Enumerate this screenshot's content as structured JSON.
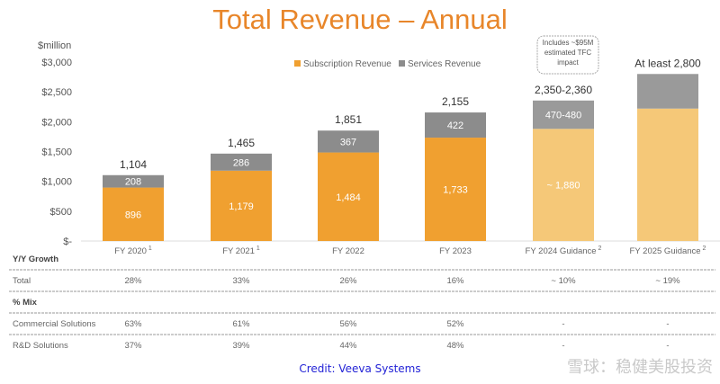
{
  "chart_data": {
    "type": "bar",
    "stacked": true,
    "title": "Total Revenue – Annual",
    "ylabel": "$million",
    "ylim": [
      0,
      3000
    ],
    "yticks": [
      "$-",
      "$500",
      "$1,000",
      "$1,500",
      "$2,000",
      "$2,500",
      "$3,000"
    ],
    "ytick_values": [
      0,
      500,
      1000,
      1500,
      2000,
      2500,
      3000
    ],
    "grid": false,
    "legend_position": "top",
    "categories": [
      "FY 2020",
      "FY 2021",
      "FY 2022",
      "FY 2023",
      "FY 2024 Guidance",
      "FY 2025 Guidance"
    ],
    "category_superscripts": [
      "1",
      "1",
      "",
      "",
      "2",
      "2"
    ],
    "series": [
      {
        "name": "Subscription Revenue",
        "color": "#F0A030",
        "guidance_color": "#F5C878",
        "values": [
          896,
          1179,
          1484,
          1733,
          1880,
          2220
        ],
        "labels": [
          "896",
          "1,179",
          "1,484",
          "1,733",
          "~ 1,880",
          ""
        ]
      },
      {
        "name": "Services Revenue",
        "color": "#8C8C8C",
        "guidance_color": "#9A9A9A",
        "values": [
          208,
          286,
          367,
          422,
          475,
          580
        ],
        "labels": [
          "208",
          "286",
          "367",
          "422",
          "470-480",
          ""
        ]
      }
    ],
    "totals": [
      "1,104",
      "1,465",
      "1,851",
      "2,155",
      "2,350-2,360",
      "At least 2,800"
    ],
    "callout": "Includes ~$95M estimated TFC impact",
    "table": {
      "sections": [
        {
          "header": "Y/Y Growth",
          "rows": [
            {
              "label": "Total",
              "values": [
                "28%",
                "33%",
                "26%",
                "16%",
                "~ 10%",
                "~ 19%"
              ]
            }
          ]
        },
        {
          "header": "% Mix",
          "rows": [
            {
              "label": "Commercial Solutions",
              "values": [
                "63%",
                "61%",
                "56%",
                "52%",
                "-",
                "-"
              ]
            },
            {
              "label": "R&D Solutions",
              "values": [
                "37%",
                "39%",
                "44%",
                "48%",
                "-",
                "-"
              ]
            }
          ]
        }
      ]
    }
  },
  "credit": "Credit: Veeva Systems",
  "watermark": "雪球：稳健美股投资"
}
